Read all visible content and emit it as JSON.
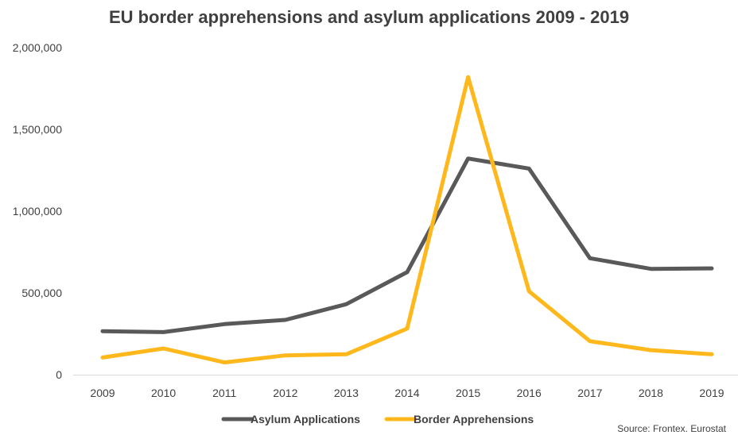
{
  "chart_data": {
    "type": "line",
    "title": "EU border apprehensions and asylum applications 2009 -  2019",
    "source": "Source: Frontex. Eurostat",
    "x": [
      "2009",
      "2010",
      "2011",
      "2012",
      "2013",
      "2014",
      "2015",
      "2016",
      "2017",
      "2018",
      "2019"
    ],
    "ylim": [
      0,
      2000000
    ],
    "yticks": [
      0,
      500000,
      1000000,
      1500000,
      2000000
    ],
    "ytick_labels": [
      "0",
      "500,000",
      "1,000,000",
      "1,500,000",
      "2,000,000"
    ],
    "grid": false,
    "legend_position": "bottom",
    "series": [
      {
        "name": "Asylum Applications",
        "color": "#595959",
        "values": [
          266000,
          260000,
          309000,
          335000,
          431000,
          627000,
          1322000,
          1260000,
          712000,
          647000,
          650000
        ]
      },
      {
        "name": "Border Apprehensions",
        "color": "#FFB81C",
        "values": [
          105000,
          160000,
          75000,
          118000,
          125000,
          282000,
          1820000,
          510000,
          205000,
          150000,
          125000
        ]
      }
    ]
  }
}
